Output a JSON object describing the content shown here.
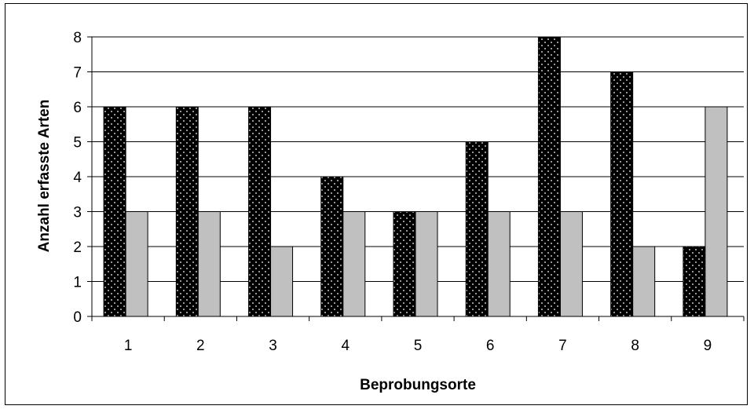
{
  "chart_data": {
    "type": "bar",
    "title": "",
    "xlabel": "Beprobungsorte",
    "ylabel": "Anzahl erfasste Arten",
    "categories": [
      "1",
      "2",
      "3",
      "4",
      "5",
      "6",
      "7",
      "8",
      "9"
    ],
    "series": [
      {
        "values": [
          6,
          6,
          6,
          4,
          3,
          5,
          8,
          7,
          2
        ],
        "color": "#000000",
        "pattern": "white-dots"
      },
      {
        "values": [
          3,
          3,
          2,
          3,
          3,
          3,
          3,
          2,
          6
        ],
        "color": "#c0c0c0"
      }
    ],
    "ylim": [
      0,
      8
    ],
    "yticks": [
      0,
      1,
      2,
      3,
      4,
      5,
      6,
      7,
      8
    ],
    "grid": true,
    "legend": "none"
  }
}
